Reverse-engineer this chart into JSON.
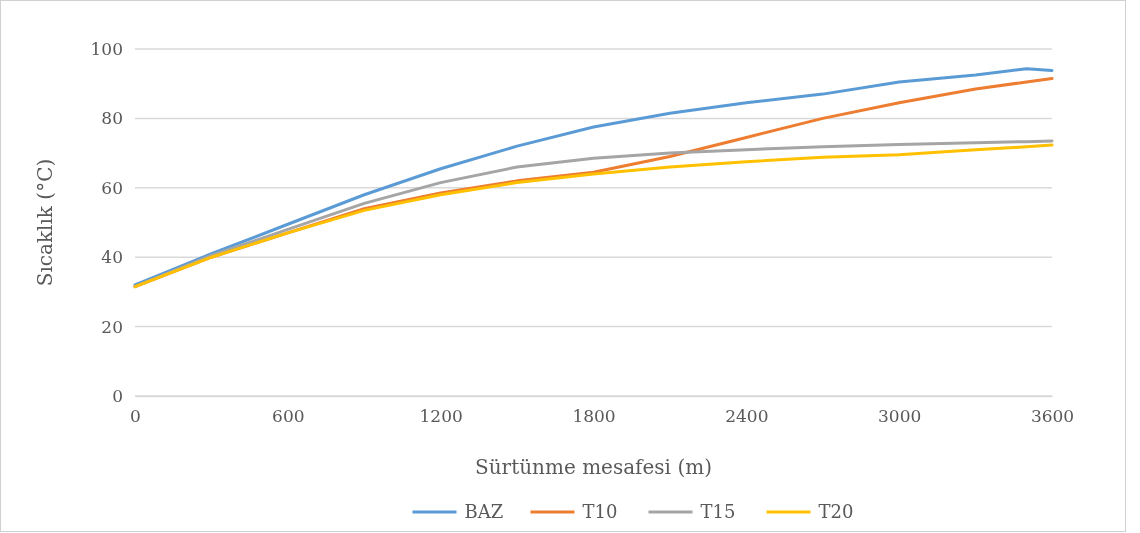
{
  "chart_data": {
    "type": "line",
    "xlabel": "Sürtünme mesafesi (m)",
    "ylabel": "Sıcaklık (°C)",
    "x": [
      0,
      300,
      600,
      900,
      1200,
      1500,
      1800,
      2100,
      2400,
      2700,
      3000,
      3300,
      3500,
      3600
    ],
    "series": [
      {
        "name": "BAZ",
        "color": "#5b9bd5",
        "values": [
          32,
          41,
          49.5,
          58,
          65.5,
          72,
          77.5,
          81.5,
          84.5,
          87,
          90.5,
          92.5,
          94.3,
          93.8
        ]
      },
      {
        "name": "T10",
        "color": "#ed7d31",
        "values": [
          31.5,
          40,
          47,
          54,
          58.5,
          62,
          64.5,
          69,
          74.5,
          80,
          84.5,
          88.5,
          90.5,
          91.5
        ]
      },
      {
        "name": "T15",
        "color": "#a5a5a5",
        "values": [
          31.5,
          40.5,
          48,
          55.5,
          61.5,
          66,
          68.5,
          70,
          71,
          71.8,
          72.5,
          73,
          73.3,
          73.5
        ]
      },
      {
        "name": "T20",
        "color": "#ffc000",
        "values": [
          31.5,
          40,
          47,
          53.5,
          58,
          61.5,
          64,
          66,
          67.5,
          68.8,
          69.5,
          71,
          71.8,
          72.3
        ]
      }
    ],
    "xlim": [
      0,
      3600
    ],
    "xticks": [
      0,
      600,
      1200,
      1800,
      2400,
      3000,
      3600
    ],
    "ylim": [
      0,
      100
    ],
    "yticks": [
      0,
      20,
      40,
      60,
      80,
      100
    ],
    "grid": "y",
    "legend": "bottom",
    "marker": "none",
    "line_style": "solid"
  }
}
